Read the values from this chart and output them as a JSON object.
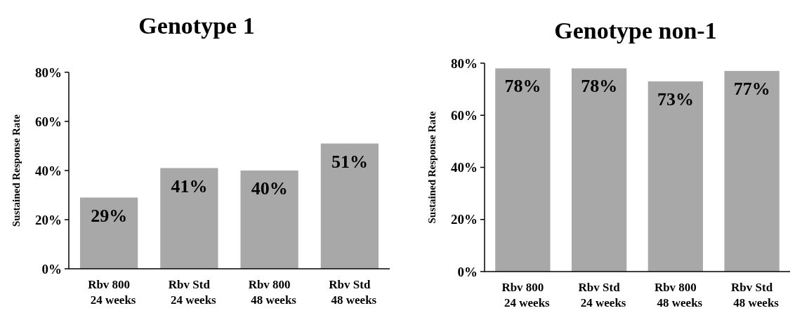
{
  "chart_data": [
    {
      "type": "bar",
      "title": "Genotype 1",
      "ylabel": "Sustained Response Rate",
      "categories": [
        "Rbv 800\n24 weeks",
        "Rbv Std\n24 weeks",
        "Rbv 800\n48 weeks",
        "Rbv Std\n48 weeks"
      ],
      "values": [
        29,
        41,
        40,
        51
      ],
      "color": "#a8a8a8",
      "ylim": [
        0,
        80
      ],
      "yticks": [
        {
          "value": 0,
          "label": "0%"
        },
        {
          "value": 20,
          "label": "20%"
        },
        {
          "value": 40,
          "label": "40%"
        },
        {
          "value": 60,
          "label": "60%"
        },
        {
          "value": 80,
          "label": "80%"
        }
      ],
      "value_labels": [
        "29%",
        "41%",
        "40%",
        "51%"
      ],
      "grid": false
    },
    {
      "type": "bar",
      "title": "Genotype non-1",
      "ylabel": "Sustained Response Rate",
      "categories": [
        "Rbv 800\n24 weeks",
        "Rbv Std\n24 weeks",
        "Rbv 800\n48 weeks",
        "Rbv Std\n48 weeks"
      ],
      "values": [
        78,
        78,
        73,
        77
      ],
      "color": "#a8a8a8",
      "ylim": [
        0,
        80
      ],
      "yticks": [
        {
          "value": 0,
          "label": "0%"
        },
        {
          "value": 20,
          "label": "20%"
        },
        {
          "value": 40,
          "label": "40%"
        },
        {
          "value": 60,
          "label": "60%"
        },
        {
          "value": 80,
          "label": "80%"
        }
      ],
      "value_labels": [
        "78%",
        "78%",
        "73%",
        "77%"
      ],
      "grid": false
    }
  ]
}
